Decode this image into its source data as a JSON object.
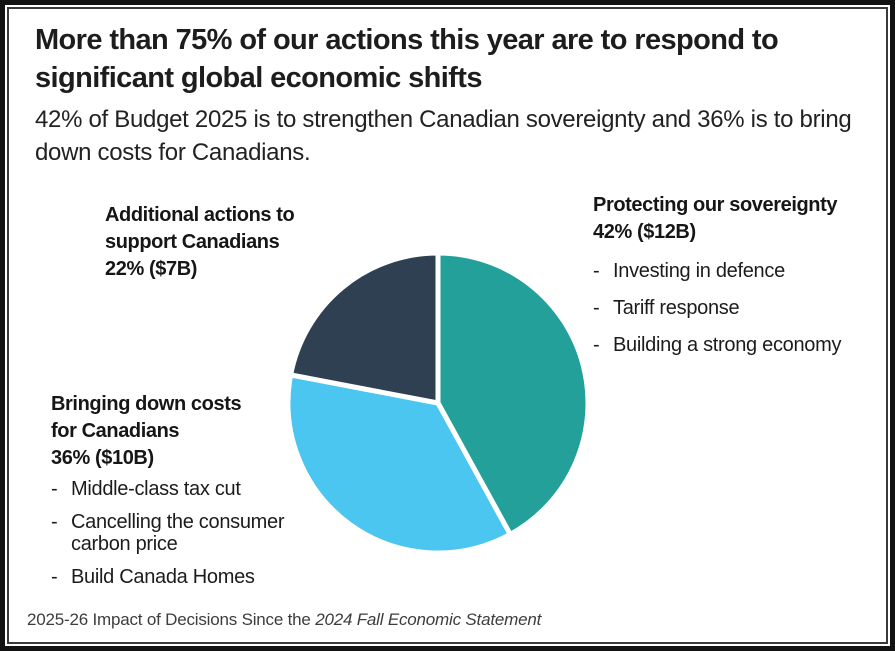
{
  "title_lines": [
    "More than 75% of our actions this year are to respond to",
    "significant global economic shifts"
  ],
  "subtitle_lines": [
    "42% of Budget 2025 is to strengthen Canadian sovereignty and 36% is to bring",
    "down costs for Canadians."
  ],
  "bullet_char": "-",
  "labels": {
    "additional": {
      "lines": [
        "Additional actions to",
        "support Canadians",
        "22% ($7B)"
      ],
      "bullets": []
    },
    "sovereignty": {
      "lines": [
        "Protecting our sovereignty",
        "42% ($12B)"
      ],
      "bullets": [
        "Investing in defence",
        "Tariff response",
        "Building a strong economy"
      ]
    },
    "costs": {
      "lines": [
        "Bringing down costs",
        "for Canadians",
        "36% ($10B)"
      ],
      "bullets": [
        "Middle-class tax cut",
        "Cancelling the consumer carbon price",
        "Build Canada Homes"
      ]
    }
  },
  "footer": {
    "normal": "2025-26 Impact of Decisions Since the ",
    "italic": "2024 Fall Economic Statement"
  },
  "chart_data": {
    "type": "pie",
    "title": "More than 75% of our actions this year are to respond to significant global economic shifts",
    "subtitle": "42% of Budget 2025 is to strengthen Canadian sovereignty and 36% is to bring down costs for Canadians.",
    "start_angle": "12 o'clock, clockwise",
    "slices": [
      {
        "name": "sovereignty",
        "label": "Protecting our sovereignty",
        "value": 42,
        "amount": "$12B",
        "color": "#22A099",
        "details": [
          "Investing in defence",
          "Tariff response",
          "Building a strong economy"
        ]
      },
      {
        "name": "costs",
        "label": "Bringing down costs for Canadians",
        "value": 36,
        "amount": "$10B",
        "color": "#4BC6F0",
        "details": [
          "Middle-class tax cut",
          "Cancelling the consumer carbon price",
          "Build Canada Homes"
        ]
      },
      {
        "name": "additional",
        "label": "Additional actions to support Canadians",
        "value": 22,
        "amount": "$7B",
        "color": "#2E4052",
        "details": []
      }
    ],
    "slice_border_color": "#FFFFFF",
    "slice_border_width": 5,
    "legend": "none",
    "footer": "2025-26 Impact of Decisions Since the 2024 Fall Economic Statement"
  },
  "colors": {
    "sovereignty_teal": "#22A099",
    "costs_blue": "#4BC6F0",
    "additional_navy": "#2E4052",
    "frame_border": "#121212",
    "text": "#1D1D1D",
    "footer_text": "#3D3D3D"
  }
}
